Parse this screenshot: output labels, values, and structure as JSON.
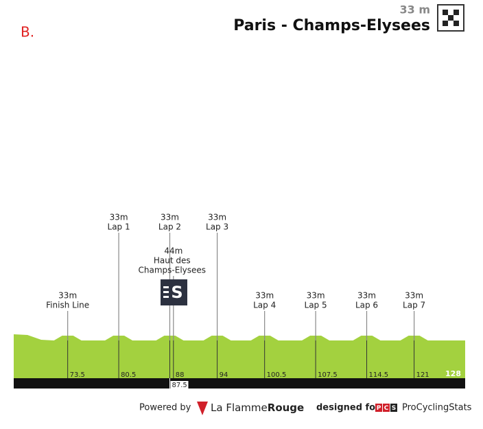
{
  "label": "B.",
  "finish": {
    "elevation": "33 m",
    "name": "Paris - Champs-Elysees"
  },
  "chart_data": {
    "type": "profile",
    "xlim": [
      66.1,
      128
    ],
    "xticks": [
      73.5,
      80.5,
      87.5,
      88,
      94,
      100.5,
      107.5,
      114.5,
      121,
      128
    ],
    "points": [
      {
        "km": 73.5,
        "elevation": "33m",
        "label": "Finish Line"
      },
      {
        "km": 80.5,
        "elevation": "33m",
        "label": "Lap 1"
      },
      {
        "km": 87.5,
        "elevation": "33m",
        "label": "Lap 2"
      },
      {
        "km": 94,
        "elevation": "33m",
        "label": "Lap 3"
      },
      {
        "km": 100.5,
        "elevation": "33m",
        "label": "Lap 4"
      },
      {
        "km": 107.5,
        "elevation": "33m",
        "label": "Lap 5"
      },
      {
        "km": 114.5,
        "elevation": "33m",
        "label": "Lap 6"
      },
      {
        "km": 121,
        "elevation": "33m",
        "label": "Lap 7"
      }
    ],
    "climb": {
      "km": 88,
      "elevation": "44m",
      "label": [
        "Haut des",
        "Champs-Elysees"
      ]
    }
  },
  "footer": {
    "powered_by": "Powered by",
    "brand": [
      "La Flamme",
      "Rouge"
    ],
    "designed_for": "designed for",
    "pcs": [
      "P",
      "C",
      "S"
    ],
    "site": "ProCyclingStats"
  }
}
